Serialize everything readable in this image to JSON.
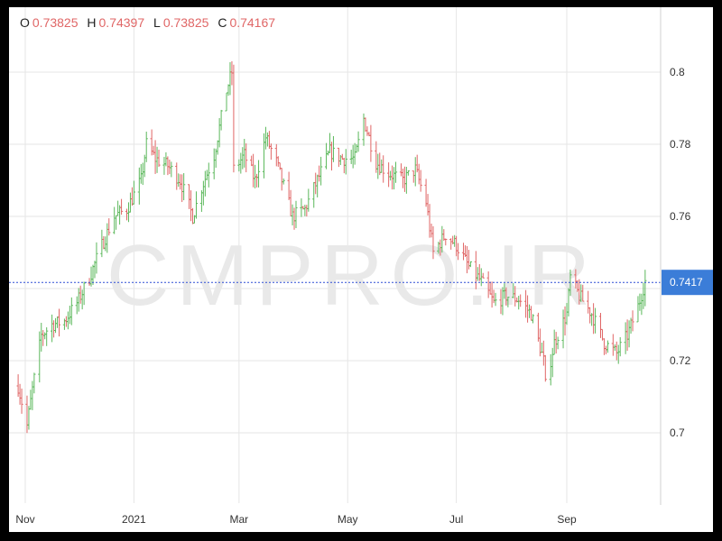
{
  "ohlc_header": {
    "o_label": "O",
    "o_value": "0.73825",
    "h_label": "H",
    "h_value": "0.74397",
    "l_label": "L",
    "l_value": "0.73825",
    "c_label": "C",
    "c_value": "0.74167"
  },
  "watermark": "CMPRO.IR",
  "colors": {
    "up": "#5cb85c",
    "down": "#e06666",
    "current_line": "#2f4fd6",
    "price_tag": "#3b7dd8",
    "grid": "#e6e6e6"
  },
  "chart_data": {
    "type": "ohlc",
    "title": "",
    "xlabel": "",
    "ylabel": "",
    "ylim": [
      0.685,
      0.81
    ],
    "y_ticks": [
      "0.8",
      "0.78",
      "0.76",
      "0.74",
      "0.72",
      "0.7"
    ],
    "y_tick_values": [
      0.8,
      0.78,
      0.76,
      0.74,
      0.72,
      0.7
    ],
    "x_ticks": [
      "Nov",
      "2021",
      "Mar",
      "May",
      "Jul",
      "Sep"
    ],
    "x_tick_dates": [
      "2020-11-01",
      "2021-01-01",
      "2021-03-01",
      "2021-05-01",
      "2021-07-01",
      "2021-09-01"
    ],
    "x_range": [
      "2020-10-28",
      "2021-10-16"
    ],
    "current_price": 0.7417,
    "current_price_label": "0.7417",
    "grid": true,
    "approx_closes": [
      [
        "2020-10-28",
        0.713
      ],
      [
        "2020-11-02",
        0.702
      ],
      [
        "2020-11-05",
        0.712
      ],
      [
        "2020-11-10",
        0.727
      ],
      [
        "2020-11-16",
        0.73
      ],
      [
        "2020-11-23",
        0.731
      ],
      [
        "2020-11-30",
        0.736
      ],
      [
        "2020-12-07",
        0.743
      ],
      [
        "2020-12-14",
        0.752
      ],
      [
        "2020-12-21",
        0.76
      ],
      [
        "2020-12-28",
        0.762
      ],
      [
        "2021-01-05",
        0.77
      ],
      [
        "2021-01-08",
        0.78
      ],
      [
        "2021-01-13",
        0.776
      ],
      [
        "2021-01-20",
        0.774
      ],
      [
        "2021-01-27",
        0.77
      ],
      [
        "2021-02-03",
        0.76
      ],
      [
        "2021-02-08",
        0.768
      ],
      [
        "2021-02-15",
        0.777
      ],
      [
        "2021-02-22",
        0.795
      ],
      [
        "2021-02-25",
        0.8
      ],
      [
        "2021-02-26",
        0.773
      ],
      [
        "2021-03-04",
        0.777
      ],
      [
        "2021-03-10",
        0.77
      ],
      [
        "2021-03-16",
        0.782
      ],
      [
        "2021-03-22",
        0.775
      ],
      [
        "2021-03-31",
        0.76
      ],
      [
        "2021-04-07",
        0.762
      ],
      [
        "2021-04-14",
        0.77
      ],
      [
        "2021-04-21",
        0.778
      ],
      [
        "2021-04-28",
        0.776
      ],
      [
        "2021-05-05",
        0.776
      ],
      [
        "2021-05-10",
        0.787
      ],
      [
        "2021-05-17",
        0.775
      ],
      [
        "2021-05-24",
        0.772
      ],
      [
        "2021-06-01",
        0.77
      ],
      [
        "2021-06-08",
        0.773
      ],
      [
        "2021-06-14",
        0.764
      ],
      [
        "2021-06-18",
        0.75
      ],
      [
        "2021-06-25",
        0.755
      ],
      [
        "2021-07-01",
        0.752
      ],
      [
        "2021-07-08",
        0.746
      ],
      [
        "2021-07-15",
        0.742
      ],
      [
        "2021-07-22",
        0.736
      ],
      [
        "2021-07-29",
        0.738
      ],
      [
        "2021-08-05",
        0.737
      ],
      [
        "2021-08-12",
        0.733
      ],
      [
        "2021-08-19",
        0.72
      ],
      [
        "2021-08-20",
        0.713
      ],
      [
        "2021-08-25",
        0.725
      ],
      [
        "2021-09-01",
        0.733
      ],
      [
        "2021-09-03",
        0.743
      ],
      [
        "2021-09-08",
        0.738
      ],
      [
        "2021-09-15",
        0.733
      ],
      [
        "2021-09-22",
        0.725
      ],
      [
        "2021-09-29",
        0.722
      ],
      [
        "2021-10-05",
        0.727
      ],
      [
        "2021-10-11",
        0.735
      ],
      [
        "2021-10-15",
        0.742
      ]
    ]
  }
}
